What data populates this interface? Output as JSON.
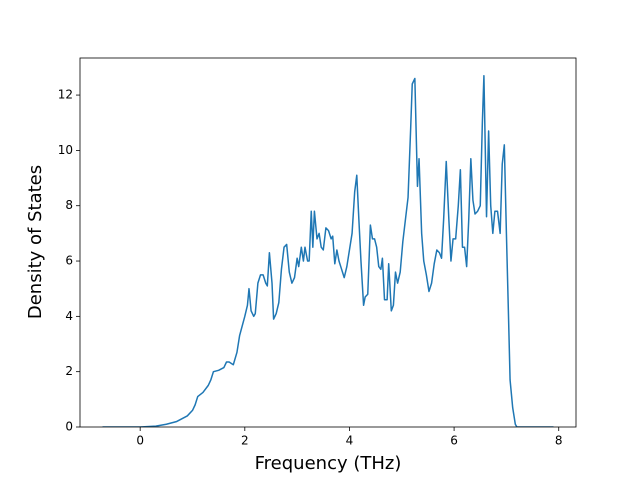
{
  "chart_data": {
    "type": "line",
    "xlabel": "Frequency (THz)",
    "ylabel": "Density of States",
    "color": "#1f77b4",
    "xlim": [
      -1.15,
      8.33
    ],
    "ylim": [
      0,
      13.34
    ],
    "xticks": [
      0,
      2,
      4,
      6,
      8
    ],
    "yticks": [
      0,
      2,
      4,
      6,
      8,
      10,
      12
    ],
    "x": [
      -0.72,
      0,
      0.3,
      0.5,
      0.7,
      0.9,
      1.0,
      1.05,
      1.1,
      1.2,
      1.3,
      1.35,
      1.4,
      1.5,
      1.6,
      1.65,
      1.7,
      1.78,
      1.85,
      1.9,
      2.0,
      2.05,
      2.08,
      2.12,
      2.17,
      2.2,
      2.25,
      2.3,
      2.35,
      2.4,
      2.43,
      2.47,
      2.52,
      2.55,
      2.6,
      2.65,
      2.7,
      2.75,
      2.8,
      2.85,
      2.9,
      2.95,
      3.0,
      3.03,
      3.08,
      3.12,
      3.15,
      3.2,
      3.23,
      3.27,
      3.3,
      3.33,
      3.38,
      3.42,
      3.46,
      3.5,
      3.55,
      3.6,
      3.65,
      3.68,
      3.72,
      3.76,
      3.8,
      3.85,
      3.9,
      3.95,
      4.0,
      4.05,
      4.1,
      4.14,
      4.18,
      4.22,
      4.27,
      4.3,
      4.35,
      4.4,
      4.44,
      4.48,
      4.52,
      4.56,
      4.6,
      4.63,
      4.67,
      4.72,
      4.75,
      4.8,
      4.84,
      4.88,
      4.92,
      4.97,
      5.02,
      5.07,
      5.12,
      5.17,
      5.2,
      5.25,
      5.3,
      5.33,
      5.38,
      5.42,
      5.47,
      5.52,
      5.57,
      5.62,
      5.67,
      5.72,
      5.76,
      5.8,
      5.85,
      5.9,
      5.94,
      5.98,
      6.03,
      6.08,
      6.12,
      6.16,
      6.2,
      6.24,
      6.28,
      6.32,
      6.36,
      6.4,
      6.45,
      6.5,
      6.54,
      6.57,
      6.62,
      6.66,
      6.7,
      6.74,
      6.78,
      6.83,
      6.88,
      6.92,
      6.96,
      7.0,
      7.04,
      7.07,
      7.12,
      7.17,
      7.2,
      7.9
    ],
    "values": [
      0,
      0,
      0.03,
      0.1,
      0.2,
      0.4,
      0.6,
      0.8,
      1.1,
      1.25,
      1.5,
      1.7,
      2.0,
      2.05,
      2.15,
      2.35,
      2.35,
      2.25,
      2.7,
      3.3,
      4.0,
      4.4,
      5.0,
      4.2,
      4.0,
      4.1,
      5.2,
      5.5,
      5.5,
      5.2,
      5.1,
      6.3,
      5.2,
      3.9,
      4.1,
      4.5,
      5.7,
      6.5,
      6.6,
      5.6,
      5.2,
      5.4,
      6.1,
      5.8,
      6.5,
      6.0,
      6.5,
      6.0,
      6.0,
      7.8,
      6.5,
      7.8,
      6.8,
      7.0,
      6.5,
      6.4,
      7.2,
      7.1,
      6.8,
      6.9,
      5.9,
      6.4,
      6.0,
      5.7,
      5.4,
      5.8,
      6.4,
      7.0,
      8.5,
      9.1,
      7.5,
      6.0,
      4.4,
      4.7,
      4.8,
      7.3,
      6.8,
      6.8,
      6.5,
      5.8,
      5.7,
      6.1,
      4.6,
      4.6,
      5.9,
      4.2,
      4.4,
      5.6,
      5.2,
      5.6,
      6.7,
      7.5,
      8.3,
      10.8,
      12.4,
      12.6,
      8.7,
      9.7,
      7.0,
      6.0,
      5.5,
      4.9,
      5.2,
      5.9,
      6.4,
      6.3,
      6.1,
      7.5,
      9.6,
      7.5,
      6.0,
      6.8,
      6.8,
      8.0,
      9.3,
      6.5,
      6.5,
      5.8,
      7.5,
      9.7,
      8.2,
      7.7,
      7.8,
      8.0,
      11.0,
      12.7,
      7.6,
      10.7,
      8.0,
      7.0,
      7.8,
      7.8,
      7.0,
      9.5,
      10.2,
      7.0,
      4.0,
      1.7,
      0.7,
      0.1,
      0,
      0
    ]
  }
}
